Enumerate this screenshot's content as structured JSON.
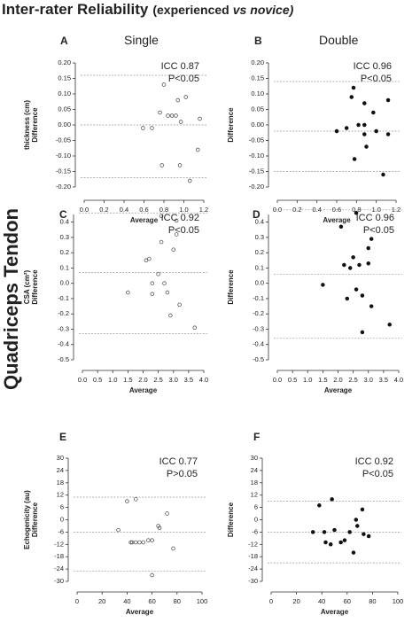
{
  "title_parts": [
    "Inter-rater Reliability",
    "(experienced",
    "vs",
    "novice)"
  ],
  "side_label": "Quadriceps Tendon",
  "column_headers": [
    "Single",
    "Double"
  ],
  "chart_data": [
    {
      "type": "scatter",
      "panel": "A",
      "ylabel": [
        "thickness (cm)",
        "Difference"
      ],
      "xlabel": "Average",
      "annotations": [
        "ICC 0.87",
        "P<0.05"
      ],
      "xlim": [
        0,
        1.2
      ],
      "xticks": [
        {
          "value": 0,
          "label": "0.0"
        },
        0.2,
        0.4,
        0.6,
        0.8,
        {
          "value": 1,
          "label": "1.0"
        },
        1.2
      ],
      "ylim": [
        -0.2,
        0.2
      ],
      "yticks": [
        {
          "value": 0.2,
          "label": "0.20"
        },
        0.15,
        {
          "value": 0.1,
          "label": "0.10"
        },
        0.05,
        {
          "value": 0,
          "label": "0.00"
        },
        -0.05,
        {
          "value": -0.1,
          "label": "-0.10"
        },
        -0.15,
        {
          "value": -0.2,
          "label": "-0.20"
        }
      ],
      "reference_lines": [
        0.16,
        0.0,
        -0.17
      ],
      "series": [
        {
          "marker": "open",
          "color": "#444",
          "x": [
            0.59,
            0.68,
            0.76,
            0.8,
            0.84,
            0.78,
            0.92,
            0.94,
            0.97,
            1.02,
            0.96,
            1.06,
            1.14,
            1.16,
            0.88
          ],
          "values": [
            -0.01,
            -0.01,
            0.04,
            0.13,
            0.03,
            -0.13,
            0.03,
            0.08,
            0.01,
            0.09,
            -0.13,
            -0.18,
            -0.08,
            0.02,
            0.03
          ]
        }
      ]
    },
    {
      "type": "scatter",
      "panel": "B",
      "ylabel": [
        "Difference"
      ],
      "xlabel": "Average",
      "annotations": [
        "ICC 0.96",
        "P<0.05"
      ],
      "xlim": [
        0,
        1.2
      ],
      "xticks": [
        {
          "value": 0,
          "label": "0.0"
        },
        0.2,
        0.4,
        0.6,
        0.8,
        {
          "value": 1,
          "label": "1.0"
        },
        1.2
      ],
      "ylim": [
        -0.2,
        0.2
      ],
      "yticks": [
        {
          "value": 0.2,
          "label": "0.20"
        },
        0.15,
        {
          "value": 0.1,
          "label": "0.10"
        },
        0.05,
        {
          "value": 0,
          "label": "0.00"
        },
        -0.05,
        {
          "value": -0.1,
          "label": "-0.10"
        },
        -0.15,
        {
          "value": -0.2,
          "label": "-0.20"
        }
      ],
      "reference_lines": [
        0.14,
        -0.02,
        -0.15
      ],
      "series": [
        {
          "marker": "filled",
          "color": "#111",
          "x": [
            0.6,
            0.7,
            0.75,
            0.77,
            0.78,
            0.82,
            0.88,
            0.88,
            0.88,
            0.9,
            0.97,
            1.0,
            1.07,
            1.12,
            1.12
          ],
          "values": [
            -0.02,
            -0.01,
            0.09,
            0.12,
            -0.11,
            0.0,
            0.0,
            0.07,
            -0.03,
            -0.07,
            0.04,
            -0.02,
            -0.16,
            -0.03,
            0.08
          ]
        }
      ]
    },
    {
      "type": "scatter",
      "panel": "C",
      "ylabel": [
        "CSA (cm²)",
        "Difference"
      ],
      "xlabel": "Average",
      "annotations": [
        "ICC 0.92",
        "P<0.05"
      ],
      "xlim": [
        0,
        4
      ],
      "xticks": [
        {
          "value": 0,
          "label": "0.0"
        },
        0.5,
        {
          "value": 1,
          "label": "1.0"
        },
        1.5,
        {
          "value": 2,
          "label": "2.0"
        },
        2.5,
        {
          "value": 3,
          "label": "3.0"
        },
        3.5,
        {
          "value": 4,
          "label": "4.0"
        }
      ],
      "ylim": [
        -0.5,
        0.45
      ],
      "yticks": [
        0.4,
        0.3,
        0.2,
        0.1,
        {
          "value": 0,
          "label": "0.0"
        },
        -0.1,
        -0.2,
        -0.3,
        -0.4,
        -0.5
      ],
      "reference_lines": [
        0.46,
        0.07,
        -0.33
      ],
      "series": [
        {
          "marker": "open",
          "color": "#444",
          "x": [
            1.5,
            2.1,
            2.2,
            2.3,
            2.3,
            2.5,
            2.6,
            2.6,
            2.7,
            2.8,
            2.9,
            3.0,
            3.1,
            3.1,
            3.2,
            3.7
          ],
          "values": [
            -0.06,
            0.15,
            0.16,
            -0.07,
            0.0,
            0.06,
            0.44,
            0.27,
            0.0,
            -0.06,
            -0.21,
            0.22,
            0.41,
            0.32,
            -0.14,
            -0.29
          ]
        }
      ]
    },
    {
      "type": "scatter",
      "panel": "D",
      "ylabel": [
        "Difference"
      ],
      "xlabel": "Average",
      "annotations": [
        "ICC 0.96",
        "P<0.05"
      ],
      "xlim": [
        0,
        4
      ],
      "xticks": [
        {
          "value": 0,
          "label": "0.0"
        },
        0.5,
        {
          "value": 1,
          "label": "1.0"
        },
        1.5,
        {
          "value": 2,
          "label": "2.0"
        },
        2.5,
        {
          "value": 3,
          "label": "3.0"
        },
        3.5,
        {
          "value": 4,
          "label": "4.0"
        }
      ],
      "ylim": [
        -0.5,
        0.45
      ],
      "yticks": [
        0.4,
        0.3,
        0.2,
        0.1,
        {
          "value": 0,
          "label": "0.0"
        },
        -0.1,
        -0.2,
        -0.3,
        -0.4,
        -0.5
      ],
      "reference_lines": [
        0.48,
        0.06,
        -0.36
      ],
      "series": [
        {
          "marker": "filled",
          "color": "#111",
          "x": [
            1.5,
            2.1,
            2.2,
            2.3,
            2.4,
            2.5,
            2.6,
            2.6,
            2.7,
            2.8,
            2.8,
            3.0,
            3.0,
            3.1,
            3.1,
            3.7
          ],
          "values": [
            -0.01,
            0.37,
            0.12,
            -0.1,
            0.1,
            0.17,
            0.46,
            -0.04,
            0.12,
            -0.08,
            -0.32,
            0.23,
            0.13,
            0.29,
            -0.15,
            -0.27
          ]
        }
      ]
    },
    {
      "type": "scatter",
      "panel": "E",
      "ylabel": [
        "Echogenicity (au)",
        "Difference"
      ],
      "xlabel": "Average",
      "annotations": [
        "ICC 0.77",
        "P>0.05"
      ],
      "xlim": [
        0,
        100
      ],
      "xticks": [
        0,
        20,
        40,
        60,
        80,
        100
      ],
      "ylim": [
        -30,
        30
      ],
      "yticks": [
        30,
        24,
        18,
        12,
        6,
        0,
        -6,
        -12,
        -18,
        -24,
        -30
      ],
      "reference_lines": [
        11,
        -6,
        -25
      ],
      "series": [
        {
          "marker": "open",
          "color": "#444",
          "x": [
            33,
            40,
            43,
            47,
            44,
            50,
            53,
            57,
            60,
            60,
            65,
            66,
            72,
            77,
            47
          ],
          "values": [
            -5,
            9,
            -11,
            10,
            -11,
            -11,
            -11,
            -10,
            -10,
            -27,
            -3,
            -4,
            3,
            -14,
            -11
          ]
        }
      ]
    },
    {
      "type": "scatter",
      "panel": "F",
      "ylabel": [
        "Difference"
      ],
      "xlabel": "Average",
      "annotations": [
        "ICC 0.92",
        "P<0.05"
      ],
      "xlim": [
        0,
        100
      ],
      "xticks": [
        0,
        20,
        40,
        60,
        80,
        100
      ],
      "ylim": [
        -30,
        30
      ],
      "yticks": [
        30,
        24,
        18,
        12,
        6,
        0,
        -6,
        -12,
        -18,
        -24,
        -30
      ],
      "reference_lines": [
        9,
        -6,
        -21
      ],
      "series": [
        {
          "marker": "filled",
          "color": "#111",
          "x": [
            33,
            38,
            42,
            43,
            47,
            48,
            50,
            55,
            58,
            62,
            65,
            67,
            68,
            72,
            73,
            77
          ],
          "values": [
            -6,
            7,
            -6,
            -11,
            -12,
            10,
            -5,
            -11,
            -10,
            -6,
            -16,
            0,
            -3,
            5,
            -7,
            -8
          ]
        }
      ]
    }
  ]
}
